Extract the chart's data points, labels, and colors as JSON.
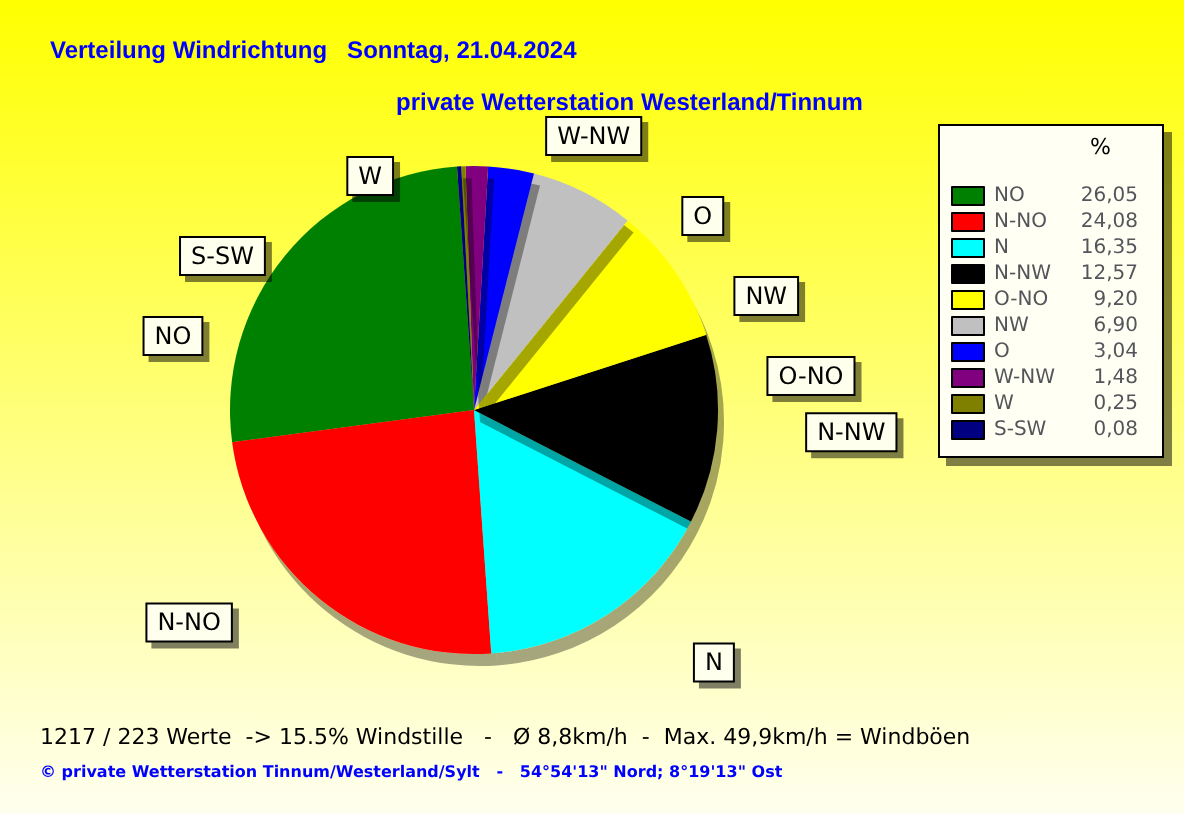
{
  "chart_data": {
    "type": "pie",
    "title": "Verteilung Windrichtung   Sonntag, 21.04.2024",
    "subtitle": "private Wetterstation Westerland/Tinnum",
    "categories": [
      "NO",
      "N-NO",
      "N",
      "N-NW",
      "O-NO",
      "NW",
      "O",
      "W-NW",
      "W",
      "S-SW"
    ],
    "values": [
      26.05,
      24.08,
      16.35,
      12.57,
      9.2,
      6.9,
      3.04,
      1.48,
      0.25,
      0.08
    ],
    "value_labels": [
      "26,05",
      "24,08",
      "16,35",
      "12,57",
      "9,20",
      "6,90",
      "3,04",
      "1,48",
      "0,25",
      "0,08"
    ],
    "colors": [
      "#008000",
      "#ff0000",
      "#00ffff",
      "#000000",
      "#ffff00",
      "#c0c0c0",
      "#0000ff",
      "#800080",
      "#808000",
      "#000080"
    ],
    "legend": "right",
    "legend_title": "%",
    "annotations": [
      "1217 / 223 Werte  -> 15.5% Windstille   -   Ø 8,8km/h  -  Max. 49,9km/h = Windböen",
      "© private Wetterstation Tinnum/Westerland/Sylt   -   54°54'13\" Nord; 8°19'13\" Ost"
    ]
  }
}
